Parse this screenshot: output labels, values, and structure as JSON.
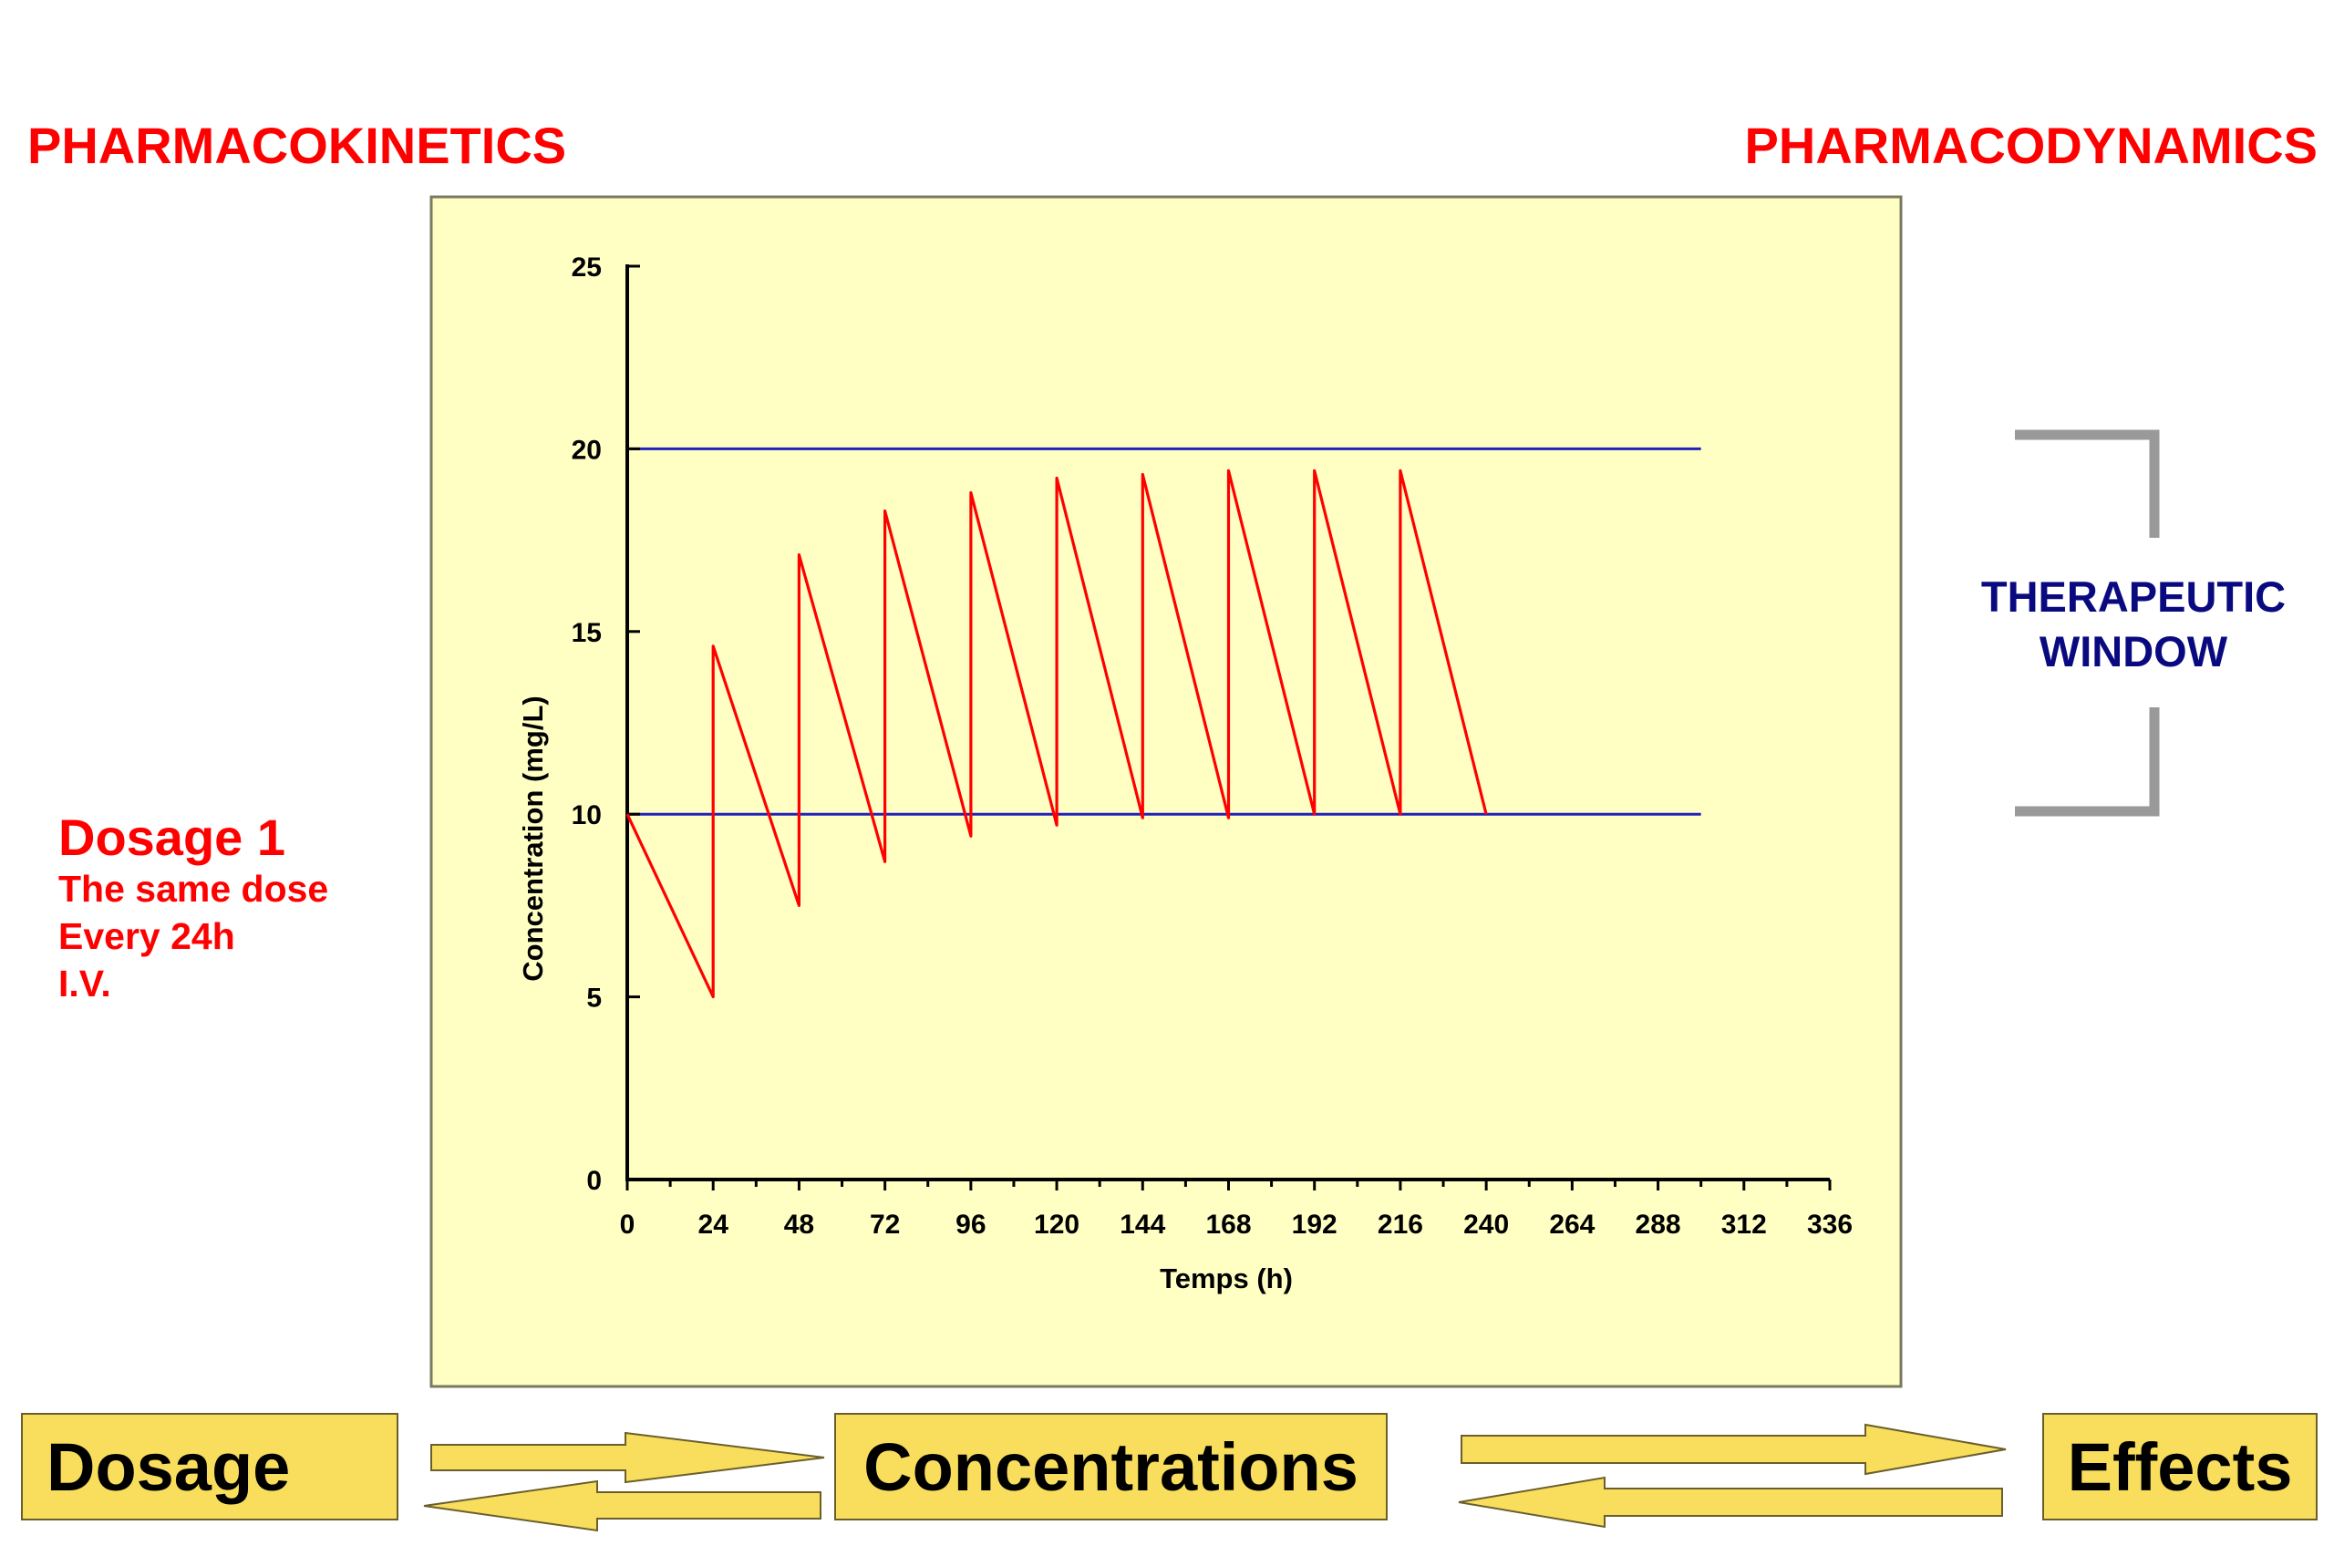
{
  "headers": {
    "left": "PHARMACOKINETICS",
    "right": "PHARMACODYNAMICS"
  },
  "dosage_note": {
    "title": "Dosage 1",
    "lines": [
      "The same dose",
      "Every 24h",
      "I.V."
    ]
  },
  "therapeutic_window": {
    "line1": "THERAPEUTIC",
    "line2": "WINDOW",
    "bracket_color": "#999999"
  },
  "flow": {
    "dosage": "Dosage",
    "concentrations": "Concentrations",
    "effects": "Effects",
    "box_color": "#f8de5c"
  },
  "colors": {
    "plot_background": "#ffffc4",
    "curve": "#ff0000",
    "threshold_lines": "#2222bb",
    "headers": "#ff0000"
  },
  "chart_data": {
    "type": "line",
    "xlabel": "Temps (h)",
    "ylabel": "Concentration (mg/L)",
    "xlim": [
      0,
      336
    ],
    "ylim": [
      0,
      25
    ],
    "x_ticks": [
      0,
      24,
      48,
      72,
      96,
      120,
      144,
      168,
      192,
      216,
      240,
      264,
      288,
      312,
      336
    ],
    "y_ticks": [
      0,
      5,
      10,
      15,
      20,
      25
    ],
    "reference_lines": [
      {
        "y": 20,
        "x_range": [
          0,
          300
        ]
      },
      {
        "y": 10,
        "x_range": [
          0,
          300
        ]
      }
    ],
    "series": [
      {
        "x": [
          0,
          24,
          24,
          48,
          48,
          72,
          72,
          96,
          96,
          120,
          120,
          144,
          144,
          168,
          168,
          192,
          192,
          216,
          216,
          240
        ],
        "y": [
          10,
          5,
          14.6,
          7.5,
          17.1,
          8.7,
          18.3,
          9.4,
          18.8,
          9.7,
          19.2,
          9.9,
          19.3,
          9.9,
          19.4,
          10,
          19.4,
          10,
          19.4,
          10
        ]
      }
    ],
    "grid": false,
    "legend": "none"
  }
}
